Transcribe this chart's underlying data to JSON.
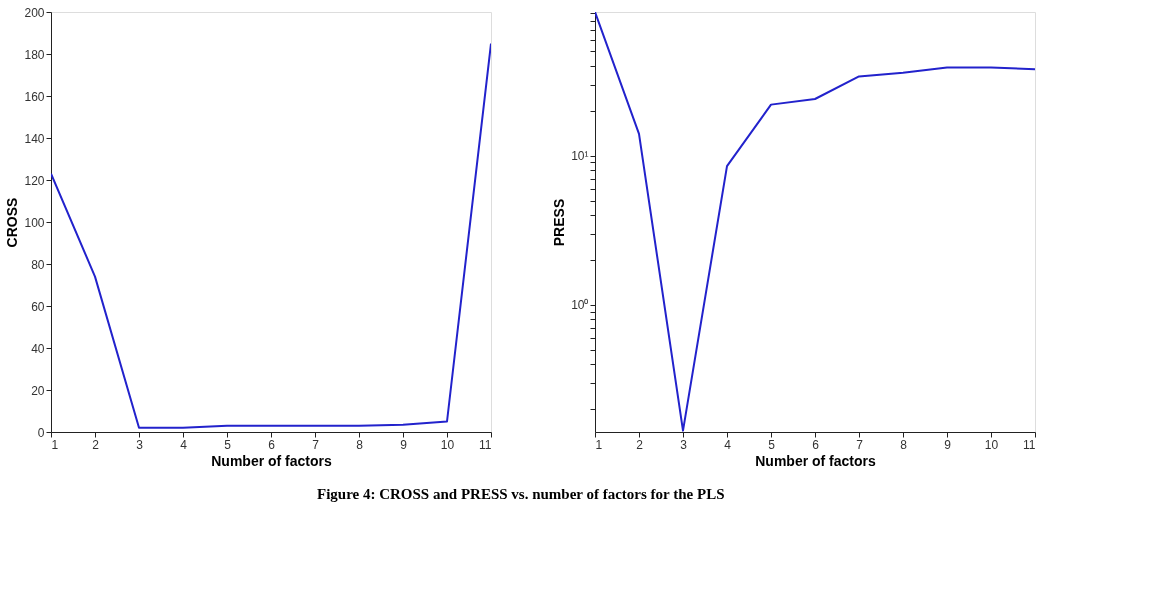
{
  "chart_data": [
    {
      "type": "line",
      "xlabel": "Number of factors",
      "ylabel": "CROSS",
      "x": [
        1,
        2,
        3,
        4,
        5,
        6,
        7,
        8,
        9,
        10,
        11
      ],
      "series": [
        {
          "color": "#2222cc",
          "values": [
            123,
            74,
            2,
            2,
            3,
            3,
            3,
            3,
            3.5,
            5,
            185
          ]
        }
      ],
      "xlim": [
        1,
        11
      ],
      "xticks": [
        1,
        2,
        3,
        4,
        5,
        6,
        7,
        8,
        9,
        10,
        11
      ],
      "ylim": [
        0,
        200
      ],
      "yticks": [
        0,
        20,
        40,
        60,
        80,
        100,
        120,
        140,
        160,
        180,
        200
      ],
      "grid": false,
      "annotations": [
        "Figure 4: CROSS and PRESS vs. number of factors for the PLS"
      ]
    },
    {
      "type": "line",
      "xlabel": "Number of factors",
      "ylabel": "PRESS",
      "x": [
        1,
        2,
        3,
        4,
        5,
        6,
        7,
        8,
        9,
        10,
        11
      ],
      "series": [
        {
          "color": "#2222cc",
          "values": [
            92,
            14,
            0.143,
            8.5,
            22,
            24,
            34,
            36,
            39,
            39,
            38
          ]
        }
      ],
      "xlim": [
        1,
        11
      ],
      "xticks": [
        1,
        2,
        3,
        4,
        5,
        6,
        7,
        8,
        9,
        10,
        11
      ],
      "ylim": [
        0.14,
        92
      ],
      "log": "y",
      "grid": false,
      "yticks": [
        {
          "value": 0.2,
          "label": null
        },
        {
          "value": 0.3,
          "label": null
        },
        {
          "value": 0.4,
          "label": null
        },
        {
          "value": 0.5,
          "label": null
        },
        {
          "value": 0.6,
          "label": null
        },
        {
          "value": 0.7,
          "label": null
        },
        {
          "value": 0.8,
          "label": null
        },
        {
          "value": 0.9,
          "label": null
        },
        {
          "value": 1,
          "label": "10⁰"
        },
        {
          "value": 2,
          "label": null
        },
        {
          "value": 3,
          "label": null
        },
        {
          "value": 4,
          "label": null
        },
        {
          "value": 5,
          "label": null
        },
        {
          "value": 6,
          "label": null
        },
        {
          "value": 7,
          "label": null
        },
        {
          "value": 8,
          "label": null
        },
        {
          "value": 9,
          "label": null
        },
        {
          "value": 10,
          "label": "10¹"
        },
        {
          "value": 20,
          "label": null
        },
        {
          "value": 30,
          "label": null
        },
        {
          "value": 40,
          "label": null
        },
        {
          "value": 50,
          "label": null
        },
        {
          "value": 60,
          "label": null
        },
        {
          "value": 70,
          "label": null
        },
        {
          "value": 80,
          "label": null
        },
        {
          "value": 90,
          "label": null
        }
      ]
    }
  ]
}
